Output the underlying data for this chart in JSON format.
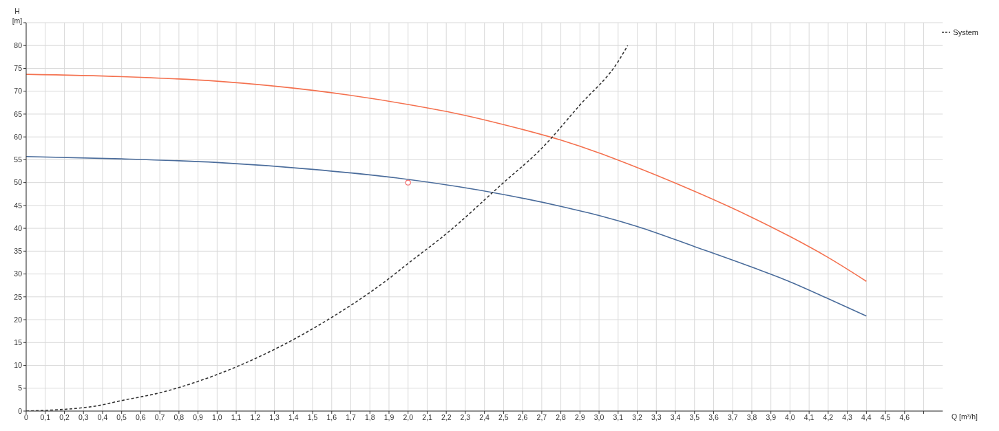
{
  "chart_data": {
    "type": "line",
    "xlabel": "Q [m³/h]",
    "ylabel": "H [m]",
    "xlim": [
      0,
      4.8
    ],
    "ylim": [
      0,
      85
    ],
    "xticks": [
      0,
      {
        "value": 0.1,
        "label": "0,1"
      },
      {
        "value": 0.2,
        "label": "0,2"
      },
      {
        "value": 0.3,
        "label": "0,3"
      },
      {
        "value": 0.4,
        "label": "0,4"
      },
      {
        "value": 0.5,
        "label": "0,5"
      },
      {
        "value": 0.6,
        "label": "0,6"
      },
      {
        "value": 0.7,
        "label": "0,7"
      },
      {
        "value": 0.8,
        "label": "0,8"
      },
      {
        "value": 0.9,
        "label": "0,9"
      },
      {
        "value": 1.0,
        "label": "1,0"
      },
      {
        "value": 1.1,
        "label": "1,1"
      },
      {
        "value": 1.2,
        "label": "1,2"
      },
      {
        "value": 1.3,
        "label": "1,3"
      },
      {
        "value": 1.4,
        "label": "1,4"
      },
      {
        "value": 1.5,
        "label": "1,5"
      },
      {
        "value": 1.6,
        "label": "1,6"
      },
      {
        "value": 1.7,
        "label": "1,7"
      },
      {
        "value": 1.8,
        "label": "1,8"
      },
      {
        "value": 1.9,
        "label": "1,9"
      },
      {
        "value": 2.0,
        "label": "2,0"
      },
      {
        "value": 2.1,
        "label": "2,1"
      },
      {
        "value": 2.2,
        "label": "2,2"
      },
      {
        "value": 2.3,
        "label": "2,3"
      },
      {
        "value": 2.4,
        "label": "2,4"
      },
      {
        "value": 2.5,
        "label": "2,5"
      },
      {
        "value": 2.6,
        "label": "2,6"
      },
      {
        "value": 2.7,
        "label": "2,7"
      },
      {
        "value": 2.8,
        "label": "2,8"
      },
      {
        "value": 2.9,
        "label": "2,9"
      },
      {
        "value": 3.0,
        "label": "3,0"
      },
      {
        "value": 3.1,
        "label": "3,1"
      },
      {
        "value": 3.2,
        "label": "3,2"
      },
      {
        "value": 3.3,
        "label": "3,3"
      },
      {
        "value": 3.4,
        "label": "3,4"
      },
      {
        "value": 3.5,
        "label": "3,5"
      },
      {
        "value": 3.6,
        "label": "3,6"
      },
      {
        "value": 3.7,
        "label": "3,7"
      },
      {
        "value": 3.8,
        "label": "3,8"
      },
      {
        "value": 3.9,
        "label": "3,9"
      },
      {
        "value": 4.0,
        "label": "4,0"
      },
      {
        "value": 4.1,
        "label": "4,1"
      },
      {
        "value": 4.2,
        "label": "4,2"
      },
      {
        "value": 4.3,
        "label": "4,3"
      },
      {
        "value": 4.4,
        "label": "4,4"
      },
      {
        "value": 4.5,
        "label": "4,5"
      },
      {
        "value": 4.6,
        "label": "4,6"
      },
      {
        "value": 4.7,
        "label": null
      }
    ],
    "yticks": [
      0,
      5,
      10,
      15,
      20,
      25,
      30,
      35,
      40,
      45,
      50,
      55,
      60,
      65,
      70,
      75,
      80,
      {
        "value": 85,
        "label": null
      }
    ],
    "grid": true,
    "legend": "top right",
    "marker": "none",
    "series": [
      {
        "color": "#4a6c9b",
        "line_style": "solid",
        "x": [
          0,
          0.5,
          1.0,
          1.5,
          2.0,
          2.5,
          2.8,
          3.0,
          3.2,
          3.5,
          3.8,
          4.0,
          4.2,
          4.4
        ],
        "values": [
          55.7,
          55.2,
          54.4,
          52.9,
          50.7,
          47.4,
          44.8,
          42.8,
          40.4,
          36.0,
          31.5,
          28.3,
          24.6,
          20.8
        ]
      },
      {
        "color": "#f4714f",
        "line_style": "solid",
        "x": [
          0,
          0.5,
          1.0,
          1.5,
          2.0,
          2.3,
          2.5,
          2.8,
          3.0,
          3.2,
          3.5,
          3.8,
          4.0,
          4.2,
          4.4
        ],
        "values": [
          73.7,
          73.2,
          72.2,
          70.2,
          67.1,
          64.7,
          62.7,
          59.3,
          56.5,
          53.3,
          48.1,
          42.4,
          38.2,
          33.6,
          28.4
        ]
      },
      {
        "name": "System",
        "color": "#333333",
        "line_style": "dashed",
        "x": [
          0,
          0.35,
          0.5,
          0.7,
          1.0,
          1.3,
          1.6,
          1.9,
          2.0,
          2.2,
          2.5,
          2.7,
          2.9,
          3.1,
          3.15
        ],
        "values": [
          0,
          1,
          2.3,
          4,
          8,
          13.5,
          20.5,
          29,
          32.3,
          38.8,
          50,
          57.5,
          67,
          76.5,
          80
        ]
      },
      {
        "type": "scatter",
        "color": "#f06a6a",
        "marker": "circle",
        "x": [
          2.0
        ],
        "values": [
          50
        ]
      }
    ]
  }
}
